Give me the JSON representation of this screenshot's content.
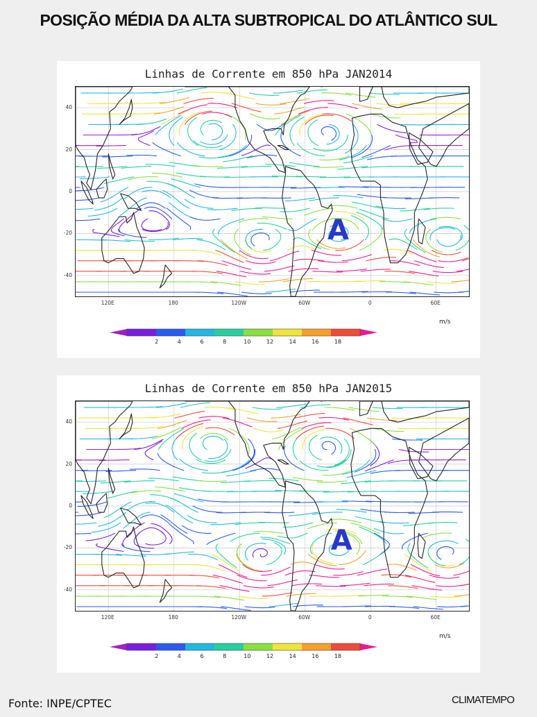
{
  "page": {
    "title": "POSIÇÃO MÉDIA DA ALTA SUBTROPICAL DO ATLÂNTICO SUL",
    "source": "Fonte: INPE/CPTEC",
    "brand": "CLIMATEMPO"
  },
  "maps": [
    {
      "title": "Linhas de Corrente em 850 hPa JAN2014",
      "high_marker": "A",
      "high_marker_position": {
        "lon": -30,
        "lat": -19
      }
    },
    {
      "title": "Linhas de Corrente em 850 hPa JAN2015",
      "high_marker": "A",
      "high_marker_position": {
        "lon": -27,
        "lat": -17
      }
    }
  ],
  "axes": {
    "lat_ticks": [
      "40",
      "20",
      "0",
      "-20",
      "-40"
    ],
    "lat_values": [
      40,
      20,
      0,
      -20,
      -40
    ],
    "lon_ticks": [
      "120E",
      "180",
      "120W",
      "60W",
      "0",
      "60E"
    ],
    "lon_values": [
      120,
      180,
      240,
      300,
      360,
      420
    ],
    "lon_range_east": [
      90,
      450
    ],
    "lat_range": [
      -50,
      50
    ]
  },
  "colorbar": {
    "unit": "m/s",
    "ticks": [
      "2",
      "4",
      "6",
      "8",
      "10",
      "12",
      "14",
      "16",
      "18"
    ],
    "colors": [
      "#a020c8",
      "#7a1ee0",
      "#2a5af0",
      "#22b8e0",
      "#26d0a0",
      "#8ae040",
      "#f0e43a",
      "#f5a02a",
      "#f04a3a",
      "#e81e8c"
    ]
  },
  "colors": {
    "marker": "#2a38c8",
    "coastline": "#222222",
    "grid": "#c8c8c8"
  }
}
